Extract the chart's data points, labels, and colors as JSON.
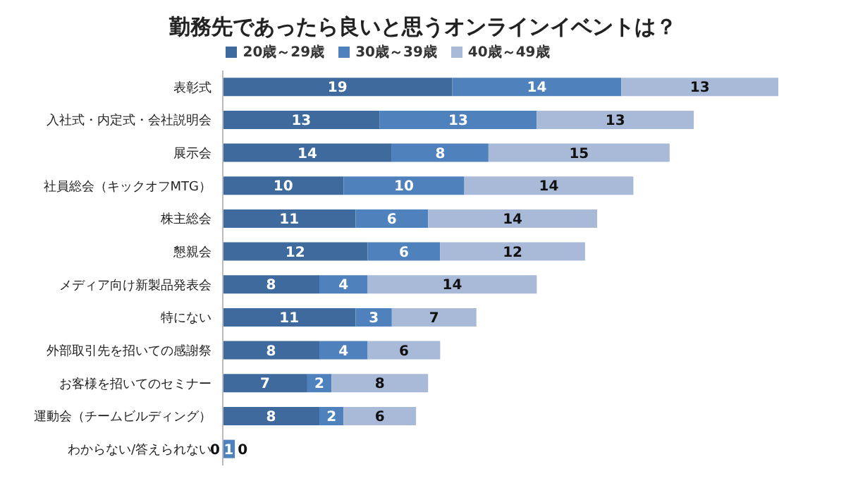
{
  "chart_data": {
    "type": "bar",
    "orientation": "horizontal",
    "stacked": true,
    "title": "勤務先であったら良いと思うオンラインイベントは？",
    "categories": [
      "表彰式",
      "入社式・内定式・会社説明会",
      "展示会",
      "社員総会（キックオフMTG）",
      "株主総会",
      "懇親会",
      "メディア向け新製品発表会",
      "特にない",
      "外部取引先を招いての感謝祭",
      "お客様を招いてのセミナー",
      "運動会（チームビルディング）",
      "わからない/答えられない"
    ],
    "series": [
      {
        "name": "20歳～29歳",
        "color": "#3f6a9e",
        "values": [
          19,
          13,
          14,
          10,
          11,
          12,
          8,
          11,
          8,
          7,
          8,
          0
        ]
      },
      {
        "name": "30歳～39歳",
        "color": "#4f81bd",
        "values": [
          14,
          13,
          8,
          10,
          6,
          6,
          4,
          3,
          4,
          2,
          2,
          1
        ]
      },
      {
        "name": "40歳～49歳",
        "color": "#a9b9d8",
        "values": [
          13,
          13,
          15,
          14,
          14,
          12,
          14,
          7,
          6,
          8,
          6,
          0
        ]
      }
    ],
    "tick_labels": "y",
    "data_labels": true,
    "legend": "top",
    "grid": false
  }
}
